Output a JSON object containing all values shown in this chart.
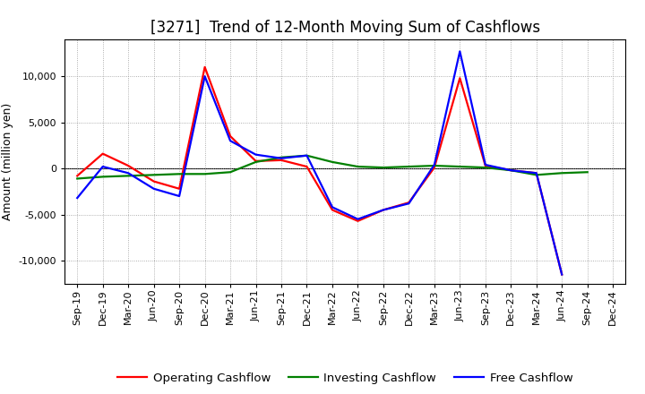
{
  "title": "[3271]  Trend of 12-Month Moving Sum of Cashflows",
  "ylabel": "Amount (million yen)",
  "x_labels": [
    "Sep-19",
    "Dec-19",
    "Mar-20",
    "Jun-20",
    "Sep-20",
    "Dec-20",
    "Mar-21",
    "Jun-21",
    "Sep-21",
    "Dec-21",
    "Mar-22",
    "Jun-22",
    "Sep-22",
    "Dec-22",
    "Mar-23",
    "Jun-23",
    "Sep-23",
    "Dec-23",
    "Mar-24",
    "Jun-24",
    "Sep-24",
    "Dec-24"
  ],
  "operating_cashflow": [
    -800,
    1600,
    300,
    -1400,
    -2200,
    11000,
    3500,
    800,
    900,
    200,
    -4500,
    -5700,
    -4500,
    -3700,
    100,
    9800,
    300,
    -200,
    -500,
    -11500,
    null,
    null
  ],
  "investing_cashflow": [
    -1100,
    -900,
    -800,
    -700,
    -600,
    -600,
    -400,
    700,
    1200,
    1400,
    700,
    200,
    100,
    200,
    300,
    200,
    100,
    -200,
    -700,
    -500,
    -400,
    null
  ],
  "free_cashflow": [
    -3200,
    200,
    -500,
    -2200,
    -3000,
    10000,
    3000,
    1500,
    1100,
    1400,
    -4200,
    -5500,
    -4500,
    -3800,
    400,
    12700,
    400,
    -200,
    -500,
    -11500,
    null,
    null
  ],
  "operating_color": "#ff0000",
  "investing_color": "#008000",
  "free_color": "#0000ff",
  "bg_color": "#ffffff",
  "plot_bg_color": "#ffffff",
  "grid_color": "#999999",
  "ylim": [
    -12500,
    14000
  ],
  "yticks": [
    -10000,
    -5000,
    0,
    5000,
    10000
  ],
  "line_width": 1.6,
  "title_fontsize": 12,
  "legend_fontsize": 9.5,
  "axis_label_fontsize": 9,
  "tick_fontsize": 8
}
